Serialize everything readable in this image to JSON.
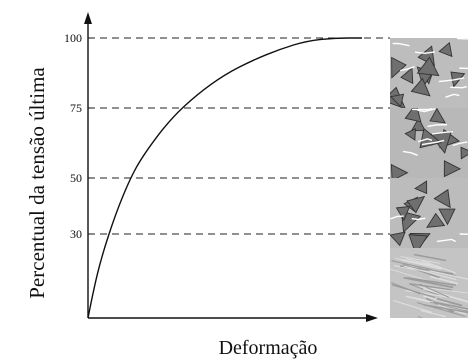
{
  "chart_data": {
    "type": "line",
    "title": "",
    "xlabel": "Deformação",
    "ylabel": "Percentual da tensão última",
    "ylim": [
      0,
      100
    ],
    "yticks": [
      100,
      75,
      50,
      30
    ],
    "ytick_labels": [
      "100",
      "75",
      "50",
      "30"
    ],
    "grid": "horizontal dashed reference lines at 30, 50, 75 and 100",
    "x_units": "relative strain (0 to 1)",
    "series": [
      {
        "x": [
          0,
          0.02,
          0.05,
          0.1,
          0.15,
          0.2,
          0.3,
          0.4,
          0.5,
          0.6,
          0.7,
          0.8,
          0.9,
          1.0
        ],
        "y": [
          0,
          10,
          22,
          37,
          49,
          58,
          71,
          80,
          87,
          92,
          96,
          99,
          100,
          100
        ]
      }
    ],
    "colors": {
      "curve": "#111111",
      "axes": "#111111",
      "gridlines": "#222222"
    },
    "side_panels": [
      {
        "level": "100-75",
        "pattern": "aggregate-with-cracks",
        "bg": "#bdbdbd"
      },
      {
        "level": "75-50",
        "pattern": "aggregate-with-cracks",
        "bg": "#b8b8b8"
      },
      {
        "level": "50-30",
        "pattern": "aggregate-few-cracks",
        "bg": "#bcbcbc"
      },
      {
        "level": "30-0",
        "pattern": "intact-texture",
        "bg": "#c4c4c4"
      }
    ]
  }
}
